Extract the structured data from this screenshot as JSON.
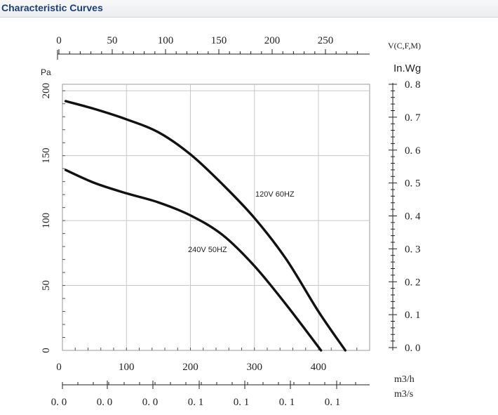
{
  "header": {
    "title": "Characteristic Curves"
  },
  "chart_data": {
    "type": "line",
    "title": "Characteristic Curves",
    "x_airflow_m3h": {
      "label": "m3/h",
      "ticks": [
        0,
        100,
        200,
        300,
        400
      ],
      "range": [
        0,
        480
      ]
    },
    "x_airflow_m3s": {
      "label": "m3/s",
      "tick_labels": [
        "0. 0",
        "0. 0",
        "0. 0",
        "0. 1",
        "0. 1",
        "0. 1",
        "0. 1"
      ]
    },
    "x_velocity": {
      "label": "V(C,F,M)",
      "ticks": [
        0,
        50,
        100,
        150,
        200,
        250
      ]
    },
    "y_pa": {
      "label": "Pa",
      "ticks": [
        0,
        50,
        100,
        150,
        200
      ],
      "range": [
        0,
        205
      ]
    },
    "y_inwg": {
      "label": "In.Wg",
      "tick_labels": [
        "0. 0",
        "0. 1",
        "0. 2",
        "0. 3",
        "0. 4",
        "0. 5",
        "0. 6",
        "0. 7",
        "0. 8"
      ]
    },
    "grid": true,
    "series": [
      {
        "name": "120V 60HZ",
        "points": [
          [
            5,
            192
          ],
          [
            50,
            186
          ],
          [
            100,
            178
          ],
          [
            150,
            168
          ],
          [
            200,
            151
          ],
          [
            250,
            128
          ],
          [
            300,
            102
          ],
          [
            350,
            70
          ],
          [
            400,
            30
          ],
          [
            442,
            0
          ]
        ]
      },
      {
        "name": "240V 50HZ",
        "points": [
          [
            5,
            139
          ],
          [
            50,
            129
          ],
          [
            100,
            121
          ],
          [
            150,
            114
          ],
          [
            200,
            104
          ],
          [
            250,
            89
          ],
          [
            300,
            65
          ],
          [
            350,
            35
          ],
          [
            404,
            0
          ]
        ]
      }
    ]
  }
}
